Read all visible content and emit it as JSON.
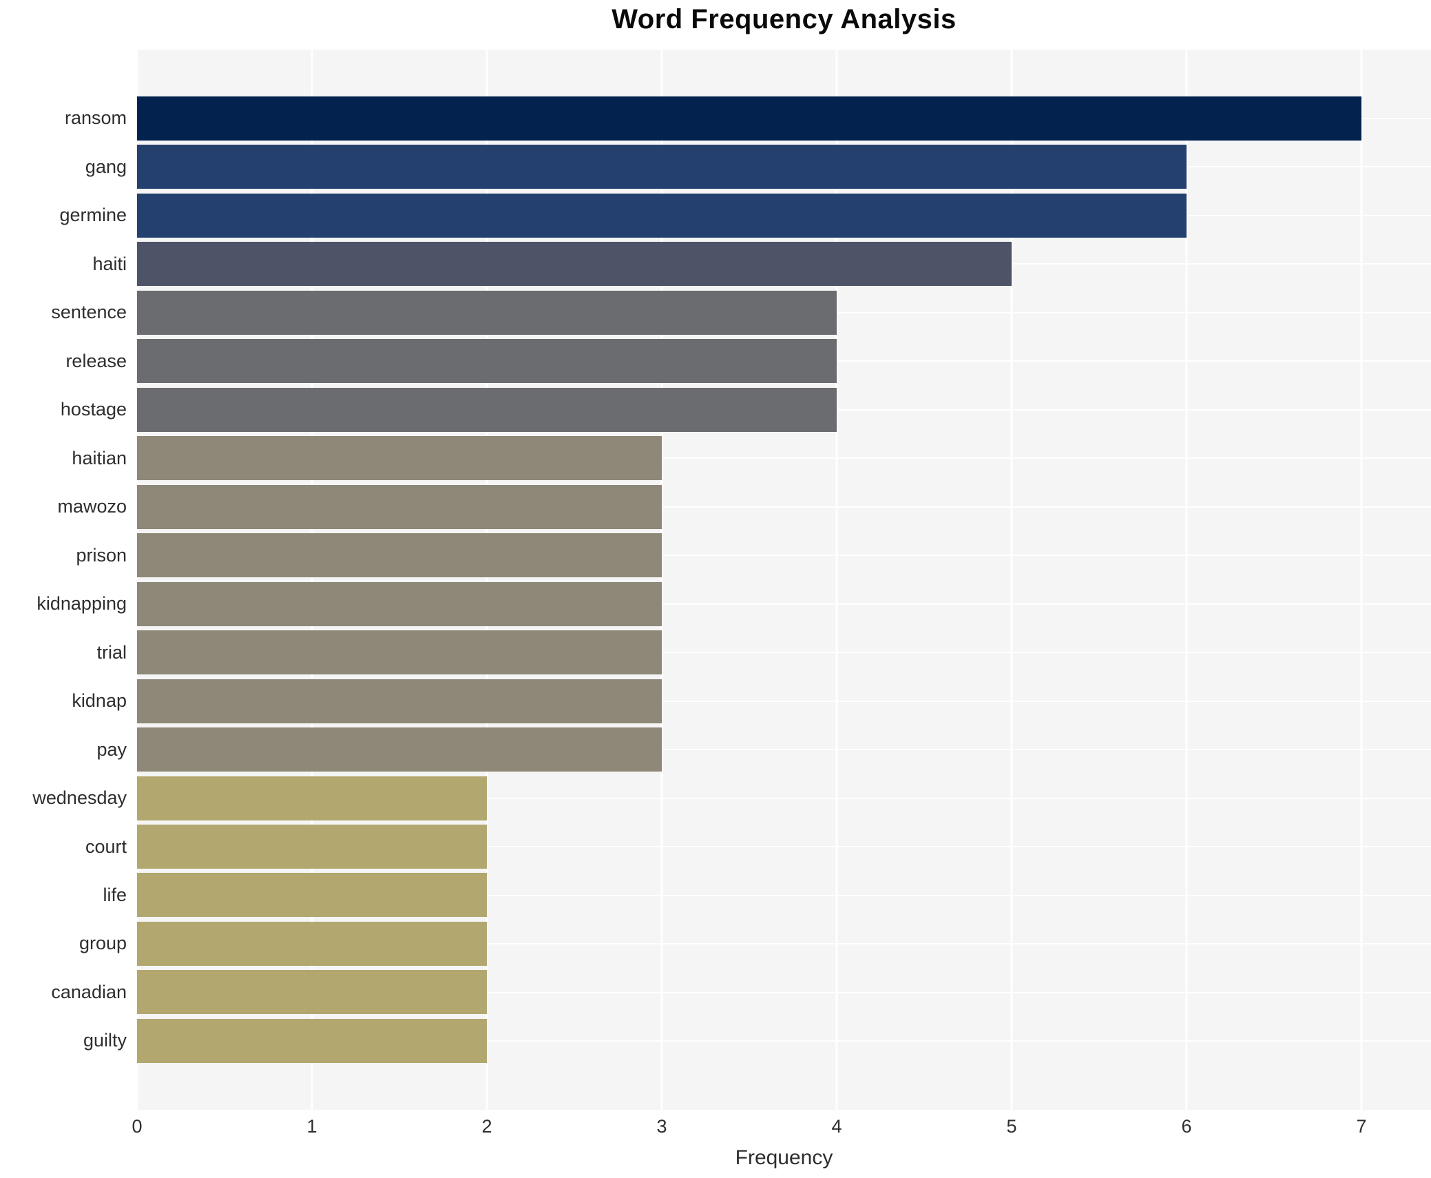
{
  "page": {
    "figure_background": "#ffffff"
  },
  "chart_data": {
    "type": "bar",
    "orientation": "horizontal",
    "title": "Word Frequency Analysis",
    "xlabel": "Frequency",
    "ylabel": "",
    "categories": [
      "ransom",
      "gang",
      "germine",
      "haiti",
      "sentence",
      "release",
      "hostage",
      "haitian",
      "mawozo",
      "prison",
      "kidnapping",
      "trial",
      "kidnap",
      "pay",
      "wednesday",
      "court",
      "life",
      "group",
      "canadian",
      "guilty"
    ],
    "values": [
      7,
      6,
      6,
      5,
      4,
      4,
      4,
      3,
      3,
      3,
      3,
      3,
      3,
      3,
      2,
      2,
      2,
      2,
      2,
      2
    ],
    "bar_colors": [
      "#03234e",
      "#24406e",
      "#24406e",
      "#4d5468",
      "#6b6c70",
      "#6b6c70",
      "#6b6c70",
      "#8d8877",
      "#8d8877",
      "#8d8877",
      "#8d8877",
      "#8d8877",
      "#8d8877",
      "#8d8877",
      "#b1a76f",
      "#b1a76f",
      "#b1a76f",
      "#b1a76f",
      "#b1a76f",
      "#b1a76f"
    ],
    "xticks": [
      "0",
      "1",
      "2",
      "3",
      "4",
      "5",
      "6",
      "7"
    ],
    "xlim": [
      0,
      7.4
    ],
    "grid": "on",
    "grid_color": "#ffffff",
    "plot_background": "#f5f5f6",
    "legend": "none"
  }
}
